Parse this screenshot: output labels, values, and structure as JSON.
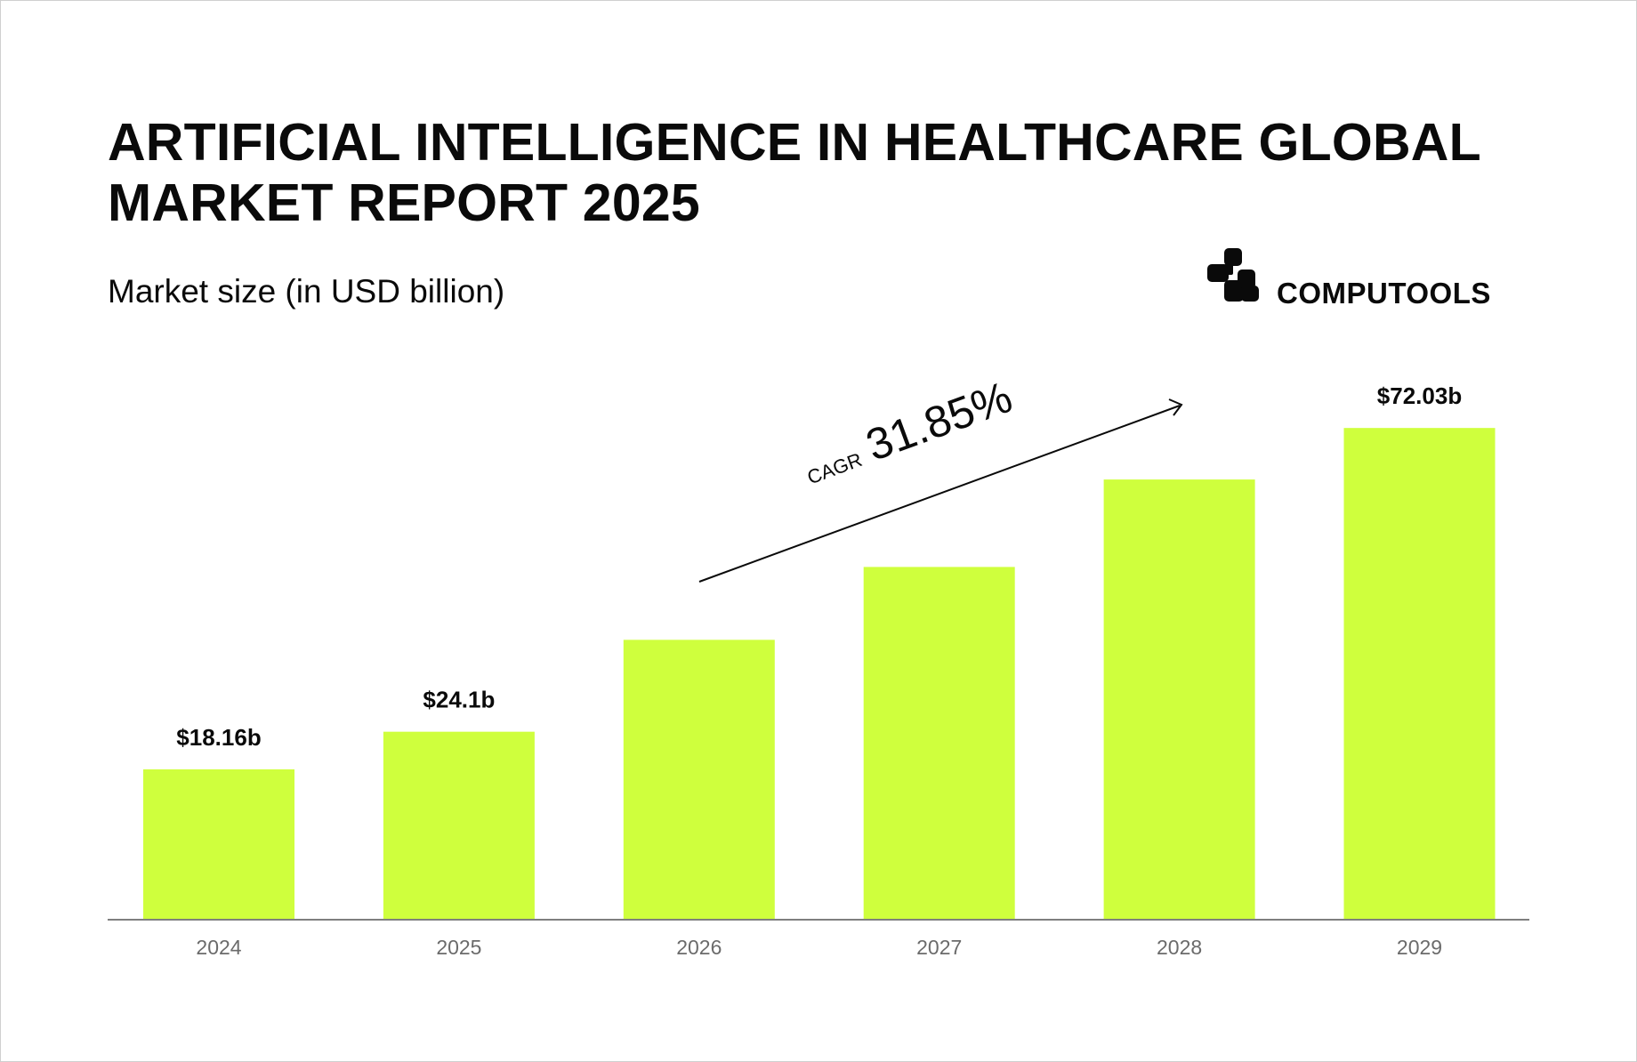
{
  "title": "ARTIFICIAL INTELLIGENCE IN HEALTHCARE GLOBAL MARKET REPORT 2025",
  "subtitle": "Market size (in USD billion)",
  "logo": {
    "text": "COMPUTOOLS"
  },
  "annotation": {
    "label": "CAGR",
    "value": "31.85%"
  },
  "colors": {
    "bar": "#cfff3d",
    "axis": "#7f7f7f",
    "text": "#0a0a0a",
    "tick": "#6b6b6b"
  },
  "chart_data": {
    "type": "bar",
    "categories": [
      "2024",
      "2025",
      "2026",
      "2027",
      "2028",
      "2029"
    ],
    "values": [
      18.16,
      24.1,
      38.6,
      50.1,
      63.9,
      72.03
    ],
    "data_labels": [
      "$18.16b",
      "$24.1b",
      "",
      "",
      "",
      "$72.03b"
    ],
    "title": "ARTIFICIAL INTELLIGENCE IN HEALTHCARE GLOBAL MARKET REPORT 2025",
    "subtitle": "Market size (in USD billion)",
    "xlabel": "",
    "ylabel": "",
    "grid": false,
    "legend": "none"
  }
}
